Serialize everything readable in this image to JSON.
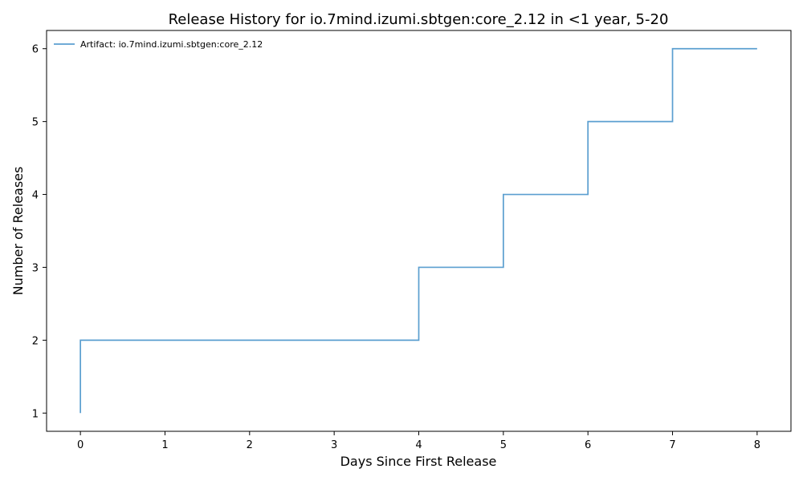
{
  "chart_data": {
    "type": "line",
    "step": "post",
    "title": "Release History for io.7mind.izumi.sbtgen:core_2.12 in <1 year, 5-20",
    "xlabel": "Days Since First Release",
    "ylabel": "Number of Releases",
    "xlim": [
      -0.4,
      8.4
    ],
    "ylim": [
      0.75,
      6.25
    ],
    "xticks": [
      0,
      1,
      2,
      3,
      4,
      5,
      6,
      7,
      8
    ],
    "yticks": [
      1,
      2,
      3,
      4,
      5,
      6
    ],
    "grid": false,
    "legend_position": "top-left",
    "series": [
      {
        "name": "Artifact: io.7mind.izumi.sbtgen:core_2.12",
        "color": "#5b9fd0",
        "x": [
          0,
          0,
          4,
          5,
          6,
          7,
          8
        ],
        "y": [
          1,
          2,
          3,
          4,
          5,
          6,
          6
        ]
      }
    ]
  }
}
